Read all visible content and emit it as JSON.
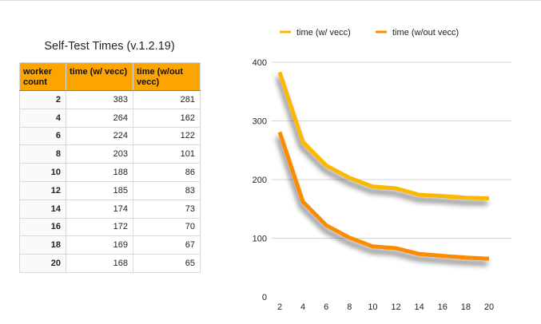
{
  "table": {
    "title": "Self-Test Times (v.1.2.19)",
    "headers": [
      "worker count",
      "time (w/ vecc)",
      "time (w/out vecc)"
    ],
    "rows": [
      [
        "2",
        "383",
        "281"
      ],
      [
        "4",
        "264",
        "162"
      ],
      [
        "6",
        "224",
        "122"
      ],
      [
        "8",
        "203",
        "101"
      ],
      [
        "10",
        "188",
        "86"
      ],
      [
        "12",
        "185",
        "83"
      ],
      [
        "14",
        "174",
        "73"
      ],
      [
        "16",
        "172",
        "70"
      ],
      [
        "18",
        "169",
        "67"
      ],
      [
        "20",
        "168",
        "65"
      ]
    ]
  },
  "chart_data": {
    "type": "line",
    "x": [
      2,
      4,
      6,
      8,
      10,
      12,
      14,
      16,
      18,
      20
    ],
    "series": [
      {
        "name": "time (w/ vecc)",
        "color": "#fbb800",
        "values": [
          383,
          264,
          224,
          203,
          188,
          185,
          174,
          172,
          169,
          168
        ]
      },
      {
        "name": "time (w/out vecc)",
        "color": "#fb8c00",
        "values": [
          281,
          162,
          122,
          101,
          86,
          83,
          73,
          70,
          67,
          65
        ]
      }
    ],
    "xticks": [
      "2",
      "4",
      "6",
      "8",
      "10",
      "12",
      "14",
      "16",
      "18",
      "20"
    ],
    "yticks": [
      "0",
      "100",
      "200",
      "300",
      "400"
    ],
    "ylim": [
      0,
      400
    ],
    "xlim": [
      2,
      20
    ],
    "grid": true,
    "legend_position": "top",
    "title": "",
    "xlabel": "",
    "ylabel": ""
  }
}
